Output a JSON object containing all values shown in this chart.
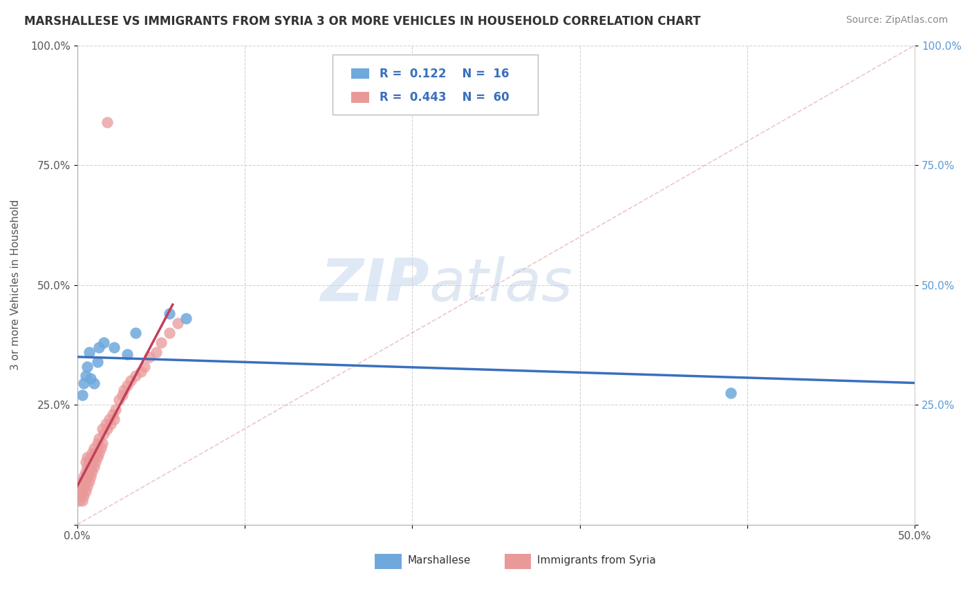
{
  "title": "MARSHALLESE VS IMMIGRANTS FROM SYRIA 3 OR MORE VEHICLES IN HOUSEHOLD CORRELATION CHART",
  "source": "Source: ZipAtlas.com",
  "ylabel": "3 or more Vehicles in Household",
  "xlim": [
    0.0,
    0.5
  ],
  "ylim": [
    0.0,
    1.0
  ],
  "xticks": [
    0.0,
    0.1,
    0.2,
    0.3,
    0.4,
    0.5
  ],
  "yticks": [
    0.0,
    0.25,
    0.5,
    0.75,
    1.0
  ],
  "xticklabels": [
    "0.0%",
    "",
    "",
    "",
    "",
    "50.0%"
  ],
  "yticklabels_left": [
    "",
    "25.0%",
    "50.0%",
    "75.0%",
    "100.0%"
  ],
  "yticklabels_right": [
    "",
    "25.0%",
    "50.0%",
    "75.0%",
    "100.0%"
  ],
  "legend1_label": "Marshallese",
  "legend2_label": "Immigrants from Syria",
  "R_marshallese": 0.122,
  "N_marshallese": 16,
  "R_syria": 0.443,
  "N_syria": 60,
  "color_marshallese": "#6fa8dc",
  "color_syria": "#ea9999",
  "color_line_marshallese": "#3a6fbe",
  "color_line_syria": "#c0405a",
  "color_diagonal": "#e8b4b8",
  "background_color": "#ffffff",
  "grid_color": "#c8c8c8",
  "watermark_zip": "ZIP",
  "watermark_atlas": "atlas",
  "marshallese_x": [
    0.003,
    0.004,
    0.005,
    0.006,
    0.007,
    0.008,
    0.01,
    0.012,
    0.013,
    0.016,
    0.022,
    0.03,
    0.035,
    0.055,
    0.065,
    0.39
  ],
  "marshallese_y": [
    0.27,
    0.295,
    0.31,
    0.33,
    0.36,
    0.305,
    0.295,
    0.34,
    0.37,
    0.38,
    0.37,
    0.355,
    0.4,
    0.44,
    0.43,
    0.275
  ],
  "syria_x": [
    0.001,
    0.002,
    0.002,
    0.003,
    0.003,
    0.003,
    0.004,
    0.004,
    0.004,
    0.005,
    0.005,
    0.005,
    0.005,
    0.006,
    0.006,
    0.006,
    0.006,
    0.007,
    0.007,
    0.007,
    0.008,
    0.008,
    0.008,
    0.009,
    0.009,
    0.009,
    0.01,
    0.01,
    0.01,
    0.011,
    0.011,
    0.012,
    0.012,
    0.013,
    0.013,
    0.014,
    0.015,
    0.015,
    0.016,
    0.017,
    0.018,
    0.019,
    0.02,
    0.021,
    0.022,
    0.023,
    0.025,
    0.027,
    0.028,
    0.03,
    0.032,
    0.035,
    0.038,
    0.04,
    0.043,
    0.047,
    0.05,
    0.055,
    0.06,
    0.018
  ],
  "syria_y": [
    0.05,
    0.06,
    0.08,
    0.05,
    0.07,
    0.09,
    0.06,
    0.08,
    0.1,
    0.07,
    0.09,
    0.11,
    0.13,
    0.08,
    0.1,
    0.12,
    0.14,
    0.09,
    0.11,
    0.13,
    0.1,
    0.12,
    0.14,
    0.11,
    0.13,
    0.15,
    0.12,
    0.14,
    0.16,
    0.13,
    0.15,
    0.14,
    0.17,
    0.15,
    0.18,
    0.16,
    0.17,
    0.2,
    0.19,
    0.21,
    0.2,
    0.22,
    0.21,
    0.23,
    0.22,
    0.24,
    0.26,
    0.27,
    0.28,
    0.29,
    0.3,
    0.31,
    0.32,
    0.33,
    0.35,
    0.36,
    0.38,
    0.4,
    0.42,
    0.84
  ]
}
